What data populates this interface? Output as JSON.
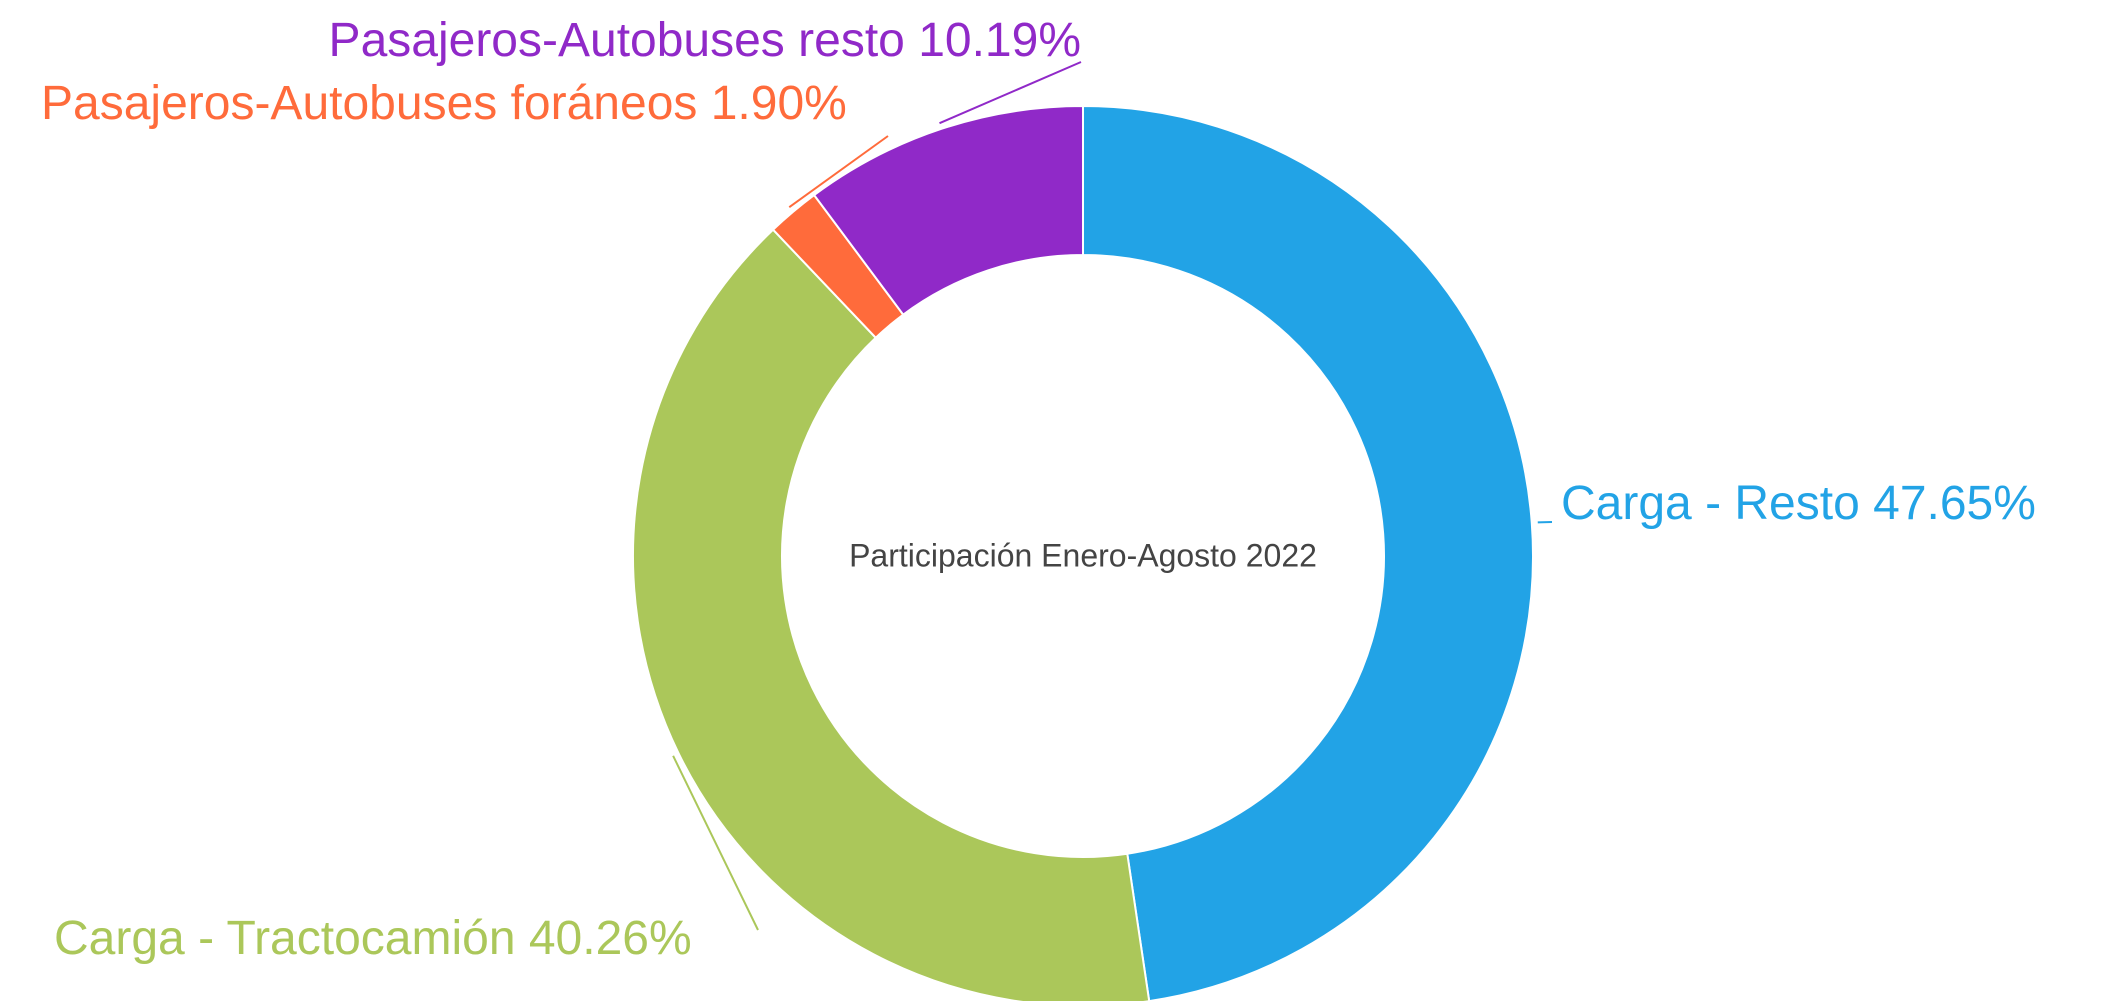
{
  "chart_data": {
    "type": "donut",
    "title": "Participación Enero-Agosto 2022",
    "categories": [
      "Carga - Resto",
      "Carga - Tractocamión",
      "Pasajeros-Autobuses foráneos",
      "Pasajeros-Autobuses resto"
    ],
    "values": [
      47.65,
      40.26,
      1.9,
      10.19
    ],
    "value_labels": [
      "47.65%",
      "40.26%",
      "1.90%",
      "10.19%"
    ],
    "colors": [
      "#22a3e6",
      "#abc75a",
      "#ff6b3b",
      "#9029c8"
    ]
  }
}
